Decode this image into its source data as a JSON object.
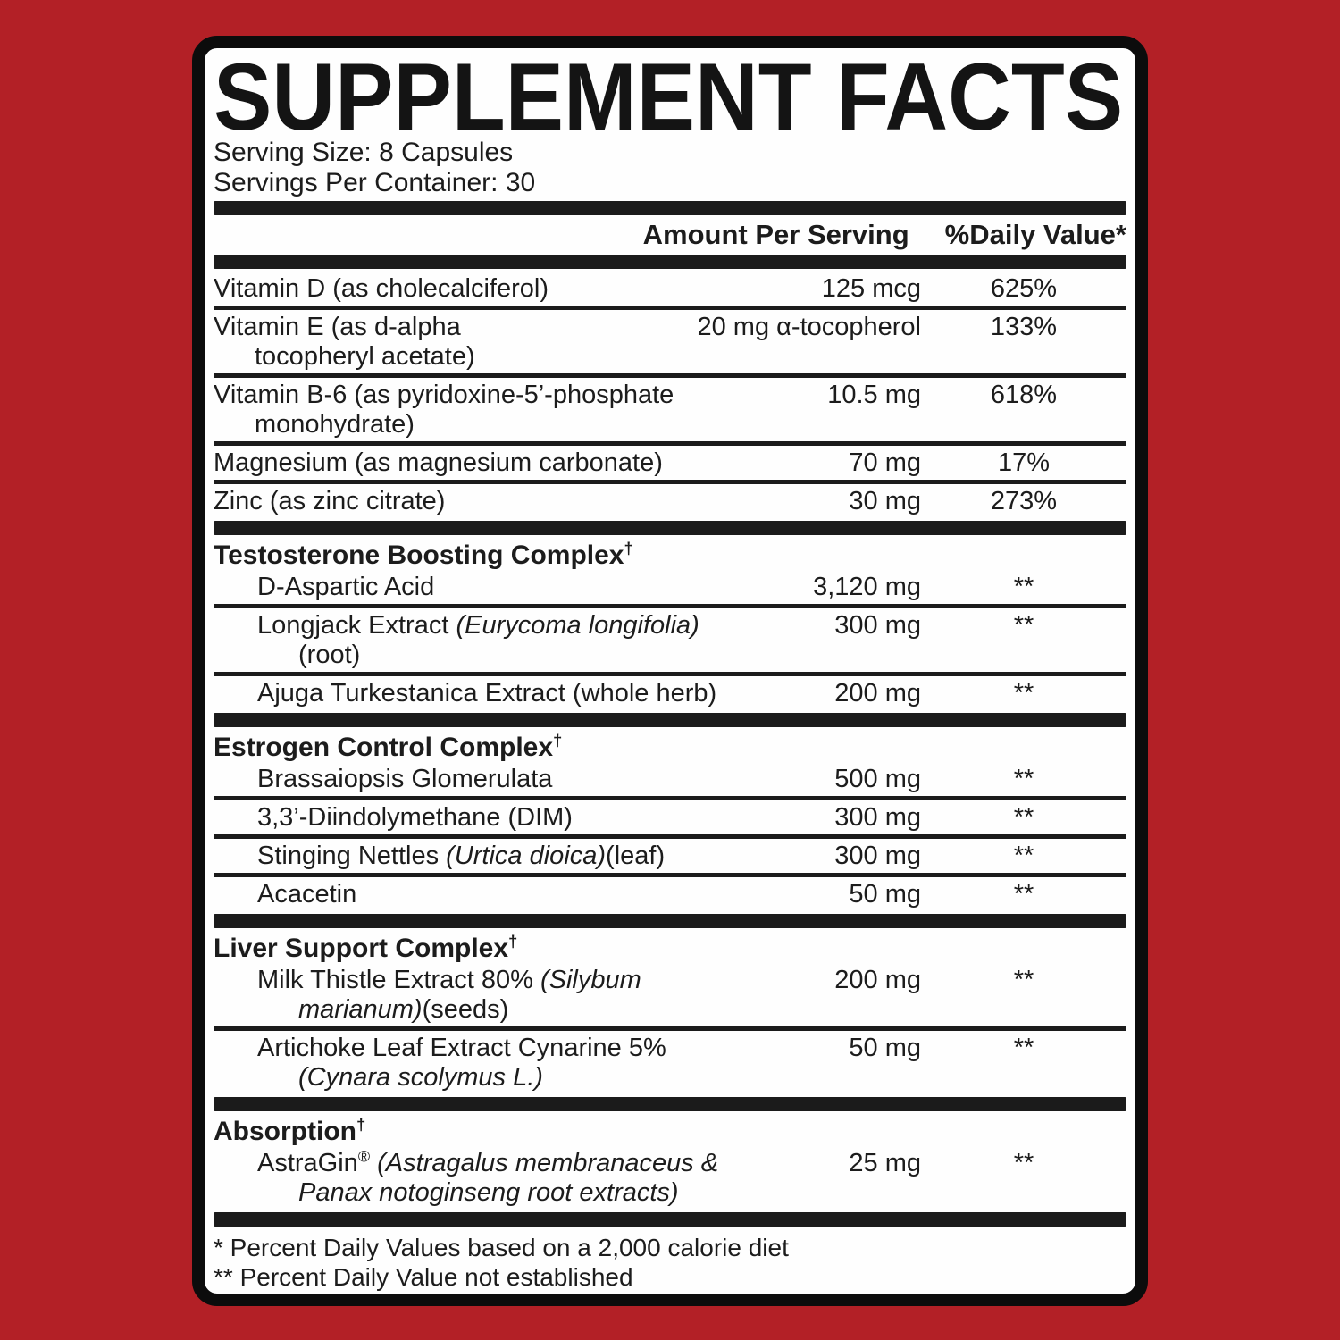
{
  "colors": {
    "background": "#b32026",
    "panel_background": "#fefefe",
    "panel_border": "#0c0c0c",
    "bar": "#1b1b1b",
    "text": "#1c1c1c"
  },
  "title": "SUPPLEMENT FACTS",
  "serving": {
    "size": "Serving Size: 8 Capsules",
    "per_container": "Servings Per Container: 30"
  },
  "header": {
    "amount": "Amount Per Serving",
    "daily_value": "%Daily Value*"
  },
  "body": [
    {
      "type": "row",
      "indent": 0,
      "lines": [
        [
          {
            "t": "Vitamin D (as cholecalciferol)"
          }
        ]
      ],
      "amount": "125 mcg",
      "dv": "625%"
    },
    {
      "type": "sep"
    },
    {
      "type": "row",
      "indent": 0,
      "lines": [
        [
          {
            "t": "Vitamin E (as d-alpha"
          }
        ],
        [
          {
            "t": "tocopheryl acetate)"
          }
        ]
      ],
      "amount": "20 mg α-tocopherol",
      "dv": "133%"
    },
    {
      "type": "sep"
    },
    {
      "type": "row",
      "indent": 0,
      "lines": [
        [
          {
            "t": "Vitamin B-6 (as pyridoxine-5’-phosphate"
          }
        ],
        [
          {
            "t": "monohydrate)"
          }
        ]
      ],
      "amount": "10.5 mg",
      "dv": "618%"
    },
    {
      "type": "sep"
    },
    {
      "type": "row",
      "indent": 0,
      "lines": [
        [
          {
            "t": "Magnesium (as magnesium carbonate)"
          }
        ]
      ],
      "amount": "70 mg",
      "dv": "17%"
    },
    {
      "type": "sep"
    },
    {
      "type": "row",
      "indent": 0,
      "lines": [
        [
          {
            "t": "Zinc (as zinc citrate)"
          }
        ]
      ],
      "amount": "30 mg",
      "dv": "273%"
    },
    {
      "type": "bar"
    },
    {
      "type": "section",
      "name": "Testosterone Boosting Complex",
      "sup": "†"
    },
    {
      "type": "row",
      "indent": 1,
      "lines": [
        [
          {
            "t": "D-Aspartic Acid"
          }
        ]
      ],
      "amount": "3,120 mg",
      "dv": "**"
    },
    {
      "type": "sep"
    },
    {
      "type": "row",
      "indent": 1,
      "lines": [
        [
          {
            "t": "Longjack Extract "
          },
          {
            "t": "(Eurycoma longifolia)",
            "i": true
          }
        ],
        [
          {
            "t": "(root)"
          }
        ]
      ],
      "amount": "300 mg",
      "dv": "**"
    },
    {
      "type": "sep"
    },
    {
      "type": "row",
      "indent": 1,
      "lines": [
        [
          {
            "t": "Ajuga Turkestanica Extract (whole herb)"
          }
        ]
      ],
      "amount": "200 mg",
      "dv": "**"
    },
    {
      "type": "bar"
    },
    {
      "type": "section",
      "name": "Estrogen Control Complex",
      "sup": "†"
    },
    {
      "type": "row",
      "indent": 1,
      "lines": [
        [
          {
            "t": "Brassaiopsis Glomerulata"
          }
        ]
      ],
      "amount": "500 mg",
      "dv": "**"
    },
    {
      "type": "sep"
    },
    {
      "type": "row",
      "indent": 1,
      "lines": [
        [
          {
            "t": "3,3’-Diindolymethane (DIM)"
          }
        ]
      ],
      "amount": "300 mg",
      "dv": "**"
    },
    {
      "type": "sep"
    },
    {
      "type": "row",
      "indent": 1,
      "lines": [
        [
          {
            "t": "Stinging Nettles "
          },
          {
            "t": "(Urtica dioica)",
            "i": true
          },
          {
            "t": "(leaf)"
          }
        ]
      ],
      "amount": "300 mg",
      "dv": "**"
    },
    {
      "type": "sep"
    },
    {
      "type": "row",
      "indent": 1,
      "lines": [
        [
          {
            "t": "Acacetin"
          }
        ]
      ],
      "amount": "50 mg",
      "dv": "**"
    },
    {
      "type": "bar"
    },
    {
      "type": "section",
      "name": "Liver Support Complex",
      "sup": "†"
    },
    {
      "type": "row",
      "indent": 1,
      "lines": [
        [
          {
            "t": "Milk Thistle Extract 80% "
          },
          {
            "t": "(Silybum",
            "i": true
          }
        ],
        [
          {
            "t": "marianum)",
            "i": true
          },
          {
            "t": "(seeds)"
          }
        ]
      ],
      "amount": "200 mg",
      "dv": "**"
    },
    {
      "type": "sep"
    },
    {
      "type": "row",
      "indent": 1,
      "lines": [
        [
          {
            "t": "Artichoke Leaf Extract Cynarine 5%"
          }
        ],
        [
          {
            "t": "(Cynara scolymus L.)",
            "i": true
          }
        ]
      ],
      "amount": "50 mg",
      "dv": "**"
    },
    {
      "type": "bar"
    },
    {
      "type": "section",
      "name": "Absorption",
      "sup": "†"
    },
    {
      "type": "row",
      "indent": 1,
      "lines": [
        [
          {
            "t": "AstraGin"
          },
          {
            "t": "®",
            "sup": true
          },
          {
            "t": " "
          },
          {
            "t": "(Astragalus membranaceus &",
            "i": true
          }
        ],
        [
          {
            "t": "Panax notoginseng root extracts)",
            "i": true
          }
        ]
      ],
      "amount": "25 mg",
      "dv": "**"
    },
    {
      "type": "bar"
    }
  ],
  "footnotes": [
    "* Percent Daily Values based on a 2,000 calorie diet",
    "** Percent Daily Value not established"
  ]
}
